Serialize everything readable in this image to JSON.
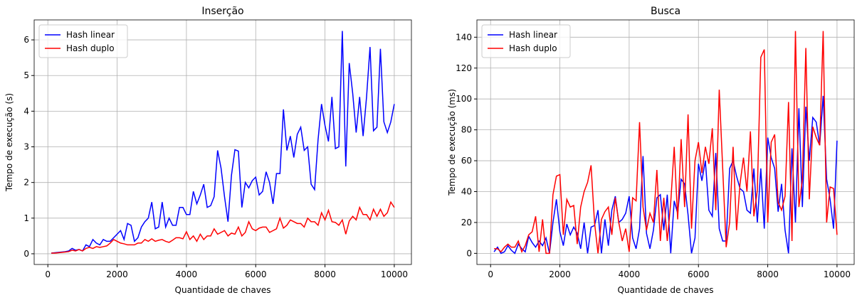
{
  "chart_data": [
    {
      "type": "line",
      "title": "Inserção",
      "xlabel": "Quantidade de chaves",
      "ylabel": "Tempo de execução (s)",
      "x": [
        100,
        200,
        300,
        400,
        500,
        600,
        700,
        800,
        900,
        1000,
        1100,
        1200,
        1300,
        1400,
        1500,
        1600,
        1700,
        1800,
        1900,
        2000,
        2100,
        2200,
        2300,
        2400,
        2500,
        2600,
        2700,
        2800,
        2900,
        3000,
        3100,
        3200,
        3300,
        3400,
        3500,
        3600,
        3700,
        3800,
        3900,
        4000,
        4100,
        4200,
        4300,
        4400,
        4500,
        4600,
        4700,
        4800,
        4900,
        5000,
        5100,
        5200,
        5300,
        5400,
        5500,
        5600,
        5700,
        5800,
        5900,
        6000,
        6100,
        6200,
        6300,
        6400,
        6500,
        6600,
        6700,
        6800,
        6900,
        7000,
        7100,
        7200,
        7300,
        7400,
        7500,
        7600,
        7700,
        7800,
        7900,
        8000,
        8100,
        8200,
        8300,
        8400,
        8500,
        8600,
        8700,
        8800,
        8900,
        9000,
        9100,
        9200,
        9300,
        9400,
        9500,
        9600,
        9700,
        9800,
        9900,
        10000
      ],
      "series": [
        {
          "name": "Hash linear",
          "color": "#0000ff",
          "values": [
            0.02,
            0.03,
            0.04,
            0.05,
            0.06,
            0.08,
            0.15,
            0.1,
            0.12,
            0.08,
            0.25,
            0.2,
            0.4,
            0.3,
            0.25,
            0.4,
            0.35,
            0.35,
            0.45,
            0.55,
            0.65,
            0.4,
            0.85,
            0.8,
            0.35,
            0.45,
            0.75,
            0.9,
            1.0,
            1.45,
            0.7,
            0.75,
            1.45,
            0.75,
            1.0,
            0.8,
            0.8,
            1.3,
            1.3,
            1.1,
            1.1,
            1.75,
            1.4,
            1.65,
            1.95,
            1.3,
            1.35,
            1.6,
            2.9,
            2.4,
            1.6,
            0.9,
            2.2,
            2.92,
            2.88,
            1.3,
            2.0,
            1.85,
            2.05,
            2.15,
            1.65,
            1.75,
            2.3,
            2.0,
            1.4,
            2.25,
            2.25,
            4.05,
            2.9,
            3.3,
            2.7,
            3.35,
            3.55,
            2.9,
            3.0,
            1.95,
            1.8,
            3.2,
            4.2,
            3.6,
            3.15,
            4.4,
            2.95,
            3.0,
            6.25,
            2.45,
            5.35,
            4.5,
            3.4,
            4.4,
            3.3,
            4.4,
            5.8,
            3.45,
            3.55,
            5.75,
            3.7,
            3.4,
            3.7,
            4.2
          ]
        },
        {
          "name": "Hash duplo",
          "color": "#ff0000",
          "values": [
            0.02,
            0.02,
            0.03,
            0.04,
            0.05,
            0.06,
            0.1,
            0.08,
            0.12,
            0.08,
            0.15,
            0.18,
            0.15,
            0.2,
            0.18,
            0.2,
            0.22,
            0.3,
            0.4,
            0.35,
            0.3,
            0.28,
            0.25,
            0.25,
            0.25,
            0.3,
            0.3,
            0.4,
            0.35,
            0.42,
            0.35,
            0.38,
            0.4,
            0.35,
            0.32,
            0.38,
            0.45,
            0.45,
            0.42,
            0.62,
            0.4,
            0.5,
            0.35,
            0.55,
            0.4,
            0.5,
            0.5,
            0.7,
            0.55,
            0.6,
            0.65,
            0.5,
            0.58,
            0.55,
            0.75,
            0.5,
            0.6,
            0.9,
            0.7,
            0.65,
            0.72,
            0.75,
            0.75,
            0.6,
            0.65,
            0.7,
            1.0,
            0.72,
            0.8,
            0.95,
            0.9,
            0.85,
            0.85,
            0.75,
            1.0,
            0.9,
            0.9,
            0.8,
            1.15,
            0.95,
            1.22,
            0.9,
            0.88,
            0.8,
            0.95,
            0.55,
            0.92,
            1.05,
            0.95,
            1.3,
            1.1,
            1.1,
            0.95,
            1.25,
            1.05,
            1.25,
            1.05,
            1.15,
            1.45,
            1.3
          ]
        }
      ],
      "xlim": [
        -395,
        10495
      ],
      "xticks": [
        0,
        2000,
        4000,
        6000,
        8000,
        10000
      ],
      "ylim": [
        -0.3,
        6.56
      ],
      "yticks": [
        0,
        1,
        2,
        3,
        4,
        5,
        6
      ],
      "grid": true,
      "legend": "upper-left"
    },
    {
      "type": "line",
      "title": "Busca",
      "xlabel": "Quantidade de chaves",
      "ylabel": "Tempo de execução (ms)",
      "x": [
        100,
        200,
        300,
        400,
        500,
        600,
        700,
        800,
        900,
        1000,
        1100,
        1200,
        1300,
        1400,
        1500,
        1600,
        1700,
        1800,
        1900,
        2000,
        2100,
        2200,
        2300,
        2400,
        2500,
        2600,
        2700,
        2800,
        2900,
        3000,
        3100,
        3200,
        3300,
        3400,
        3500,
        3600,
        3700,
        3800,
        3900,
        4000,
        4100,
        4200,
        4300,
        4400,
        4500,
        4600,
        4700,
        4800,
        4900,
        5000,
        5100,
        5200,
        5300,
        5400,
        5500,
        5600,
        5700,
        5800,
        5900,
        6000,
        6100,
        6200,
        6300,
        6400,
        6500,
        6600,
        6700,
        6800,
        6900,
        7000,
        7100,
        7200,
        7300,
        7400,
        7500,
        7600,
        7700,
        7800,
        7900,
        8000,
        8100,
        8200,
        8300,
        8400,
        8500,
        8600,
        8700,
        8800,
        8900,
        9000,
        9100,
        9200,
        9300,
        9400,
        9500,
        9600,
        9700,
        9800,
        9900,
        10000
      ],
      "series": [
        {
          "name": "Hash linear",
          "color": "#0000ff",
          "values": [
            1,
            4,
            0,
            1,
            5,
            2,
            0,
            6,
            3,
            1,
            11,
            7,
            4,
            8,
            5,
            10,
            0,
            20,
            35,
            14,
            5,
            19,
            12,
            17,
            13,
            3,
            20,
            0,
            17,
            18,
            28,
            0,
            22,
            5,
            28,
            37,
            20,
            22,
            26,
            37,
            10,
            3,
            16,
            63,
            13,
            3,
            15,
            36,
            38,
            15,
            38,
            0,
            34,
            26,
            48,
            45,
            25,
            0,
            10,
            58,
            47,
            60,
            28,
            24,
            65,
            16,
            8,
            8,
            55,
            60,
            50,
            42,
            40,
            28,
            26,
            55,
            20,
            55,
            16,
            75,
            62,
            55,
            27,
            45,
            15,
            0,
            68,
            20,
            94,
            30,
            95,
            60,
            88,
            85,
            70,
            102,
            48,
            35,
            16,
            73
          ]
        },
        {
          "name": "Hash duplo",
          "color": "#ff0000",
          "values": [
            3,
            3,
            1,
            4,
            6,
            4,
            4,
            8,
            1,
            5,
            12,
            14,
            24,
            1,
            22,
            0,
            0,
            38,
            50,
            51,
            12,
            35,
            30,
            31,
            6,
            30,
            40,
            46,
            57,
            20,
            0,
            22,
            27,
            30,
            12,
            36,
            20,
            8,
            16,
            1,
            36,
            34,
            85,
            30,
            15,
            26,
            20,
            54,
            8,
            36,
            8,
            33,
            69,
            22,
            74,
            30,
            90,
            16,
            60,
            72,
            52,
            69,
            58,
            81,
            28,
            106,
            55,
            4,
            20,
            69,
            15,
            45,
            62,
            40,
            79,
            24,
            41,
            127,
            132,
            20,
            72,
            77,
            33,
            28,
            37,
            98,
            8,
            144,
            30,
            48,
            133,
            35,
            82,
            75,
            70,
            144,
            20,
            43,
            42,
            12
          ]
        }
      ],
      "xlim": [
        -395,
        10495
      ],
      "xticks": [
        0,
        2000,
        4000,
        6000,
        8000,
        10000
      ],
      "ylim": [
        -7.2,
        151.2
      ],
      "yticks": [
        0,
        20,
        40,
        60,
        80,
        100,
        120,
        140
      ],
      "grid": true,
      "legend": "upper-left"
    }
  ]
}
